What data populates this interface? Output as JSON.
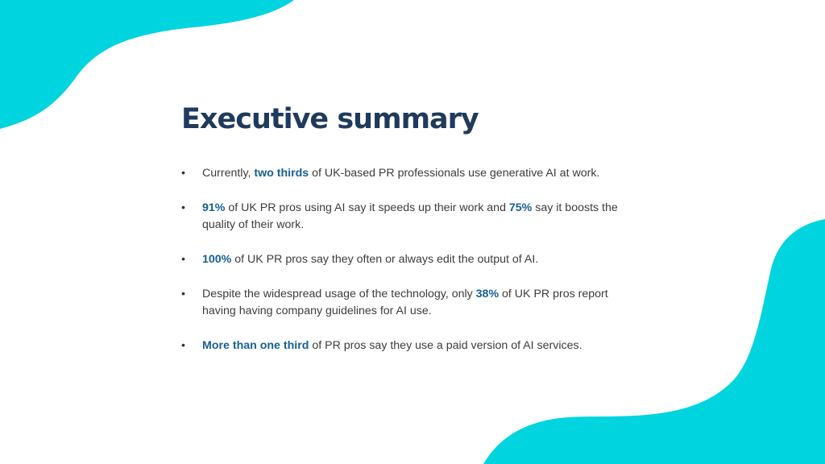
{
  "theme": {
    "accent": "#00d4de",
    "title_color": "#1f3a5c",
    "highlight_color": "#155f94",
    "text_color": "#3c3c3c"
  },
  "title": "Executive summary",
  "bullet_char": "•",
  "bullets": [
    {
      "pre": "Currently, ",
      "hl": "two thirds",
      "post": " of UK-based PR professionals use generative AI at work."
    },
    {
      "hl1": "91%",
      "mid": " of UK PR pros using AI say it speeds up their work and ",
      "hl2": "75%",
      "post": " say it boosts the quality of their work."
    },
    {
      "hl": "100%",
      "post": " of UK PR pros say they often or always edit the output of AI."
    },
    {
      "pre": "Despite the widespread usage of the technology, only ",
      "hl": "38%",
      "post": " of UK PR pros report having having company guidelines for AI use."
    },
    {
      "hl": "More than one third",
      "post": " of PR pros say they use a paid version of AI services."
    }
  ]
}
